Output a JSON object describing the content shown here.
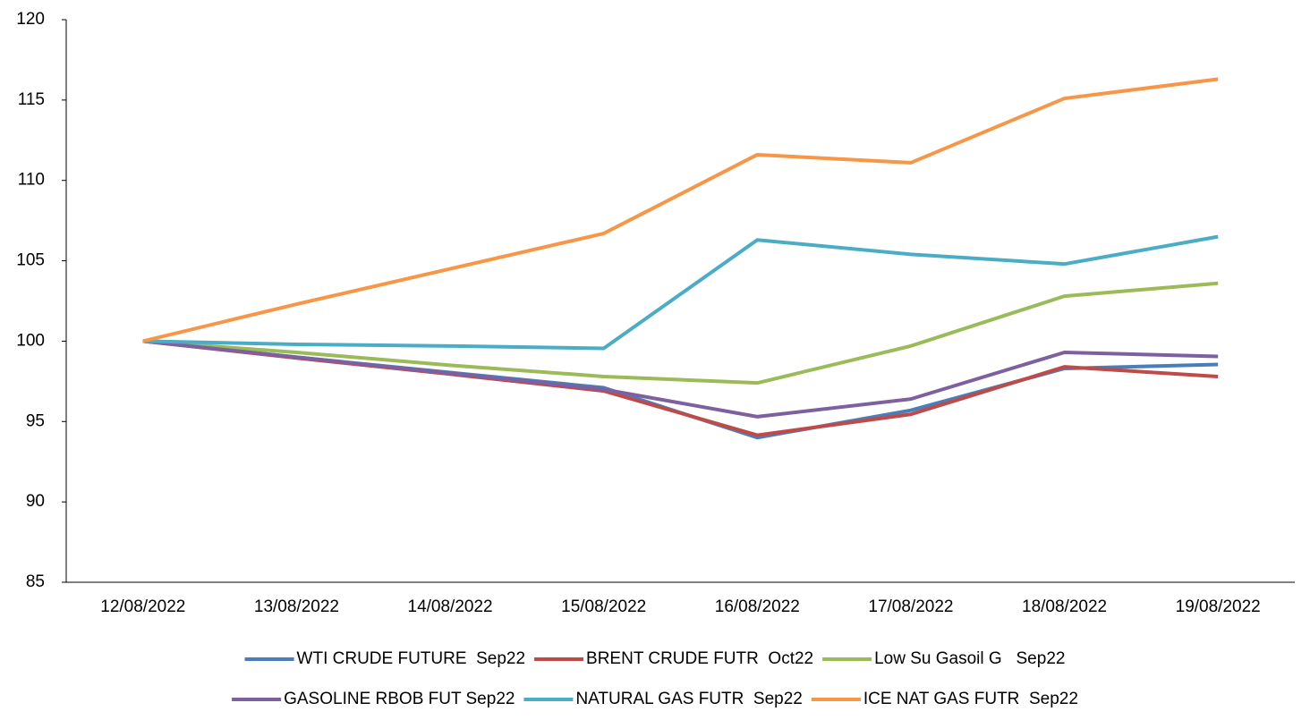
{
  "chart_data": {
    "type": "line",
    "categories": [
      "12/08/2022",
      "13/08/2022",
      "14/08/2022",
      "15/08/2022",
      "16/08/2022",
      "17/08/2022",
      "18/08/2022",
      "19/08/2022"
    ],
    "series": [
      {
        "name": "WTI CRUDE FUTURE  Sep22",
        "color": "#4a7ebb",
        "values": [
          100,
          99.0,
          98.05,
          97.1,
          94.0,
          95.7,
          98.3,
          98.55
        ]
      },
      {
        "name": "BRENT CRUDE FUTR  Oct22",
        "color": "#be4b48",
        "values": [
          100,
          98.95,
          97.95,
          96.9,
          94.15,
          95.45,
          98.4,
          97.8
        ]
      },
      {
        "name": "Low Su Gasoil G   Sep22",
        "color": "#9bbb59",
        "values": [
          100,
          99.3,
          98.5,
          97.8,
          97.4,
          99.7,
          102.8,
          103.6
        ]
      },
      {
        "name": "GASOLINE RBOB FUT Sep22",
        "color": "#7d60a0",
        "values": [
          100,
          99.0,
          98.0,
          97.0,
          95.3,
          96.4,
          99.3,
          99.05
        ]
      },
      {
        "name": "NATURAL GAS FUTR  Sep22",
        "color": "#4bacc6",
        "values": [
          100,
          99.8,
          99.7,
          99.55,
          106.3,
          105.4,
          104.8,
          106.5
        ]
      },
      {
        "name": "ICE NAT GAS FUTR  Sep22",
        "color": "#f79646",
        "values": [
          100,
          102.3,
          104.5,
          106.7,
          111.6,
          111.1,
          115.1,
          116.3
        ]
      }
    ],
    "ylim": [
      85,
      120
    ],
    "yticks": [
      85,
      90,
      95,
      100,
      105,
      110,
      115,
      120
    ],
    "grid": false,
    "legend": "bottom"
  }
}
